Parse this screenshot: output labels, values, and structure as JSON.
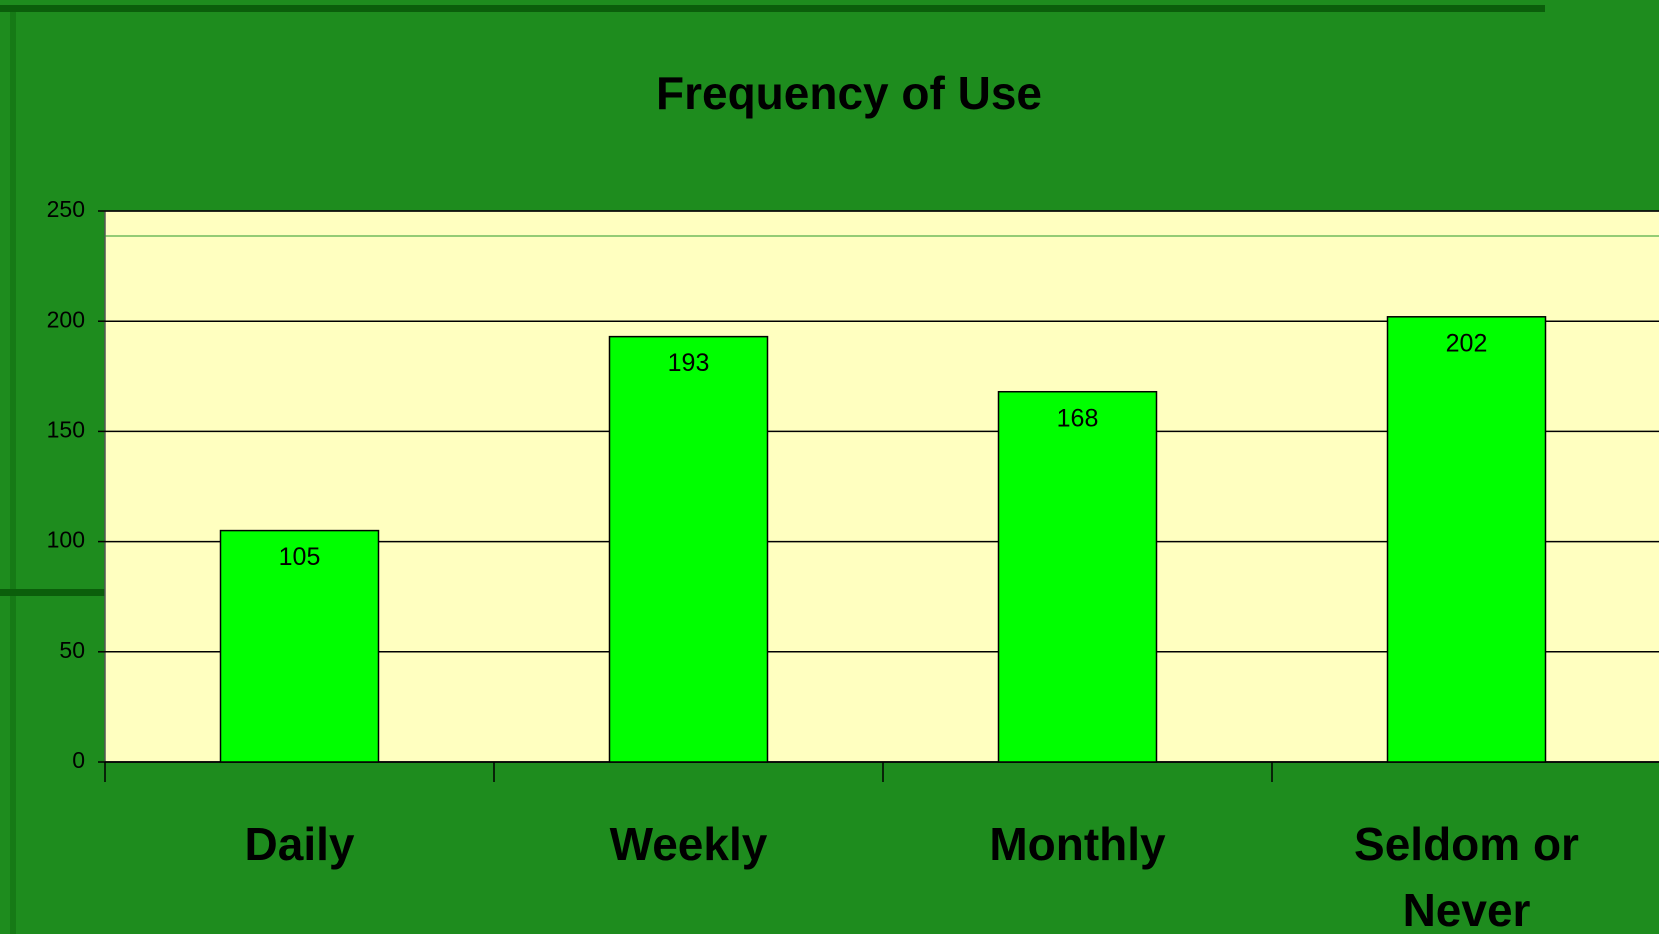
{
  "chart_data": {
    "type": "bar",
    "title": "Frequency of Use",
    "categories": [
      "Daily",
      "Weekly",
      "Monthly",
      "Seldom or Never"
    ],
    "values": [
      105,
      193,
      168,
      202
    ],
    "color": "#00ff00",
    "ylim": [
      0,
      250
    ],
    "yticks": [
      0,
      50,
      100,
      150,
      200,
      250
    ],
    "grid": true
  }
}
